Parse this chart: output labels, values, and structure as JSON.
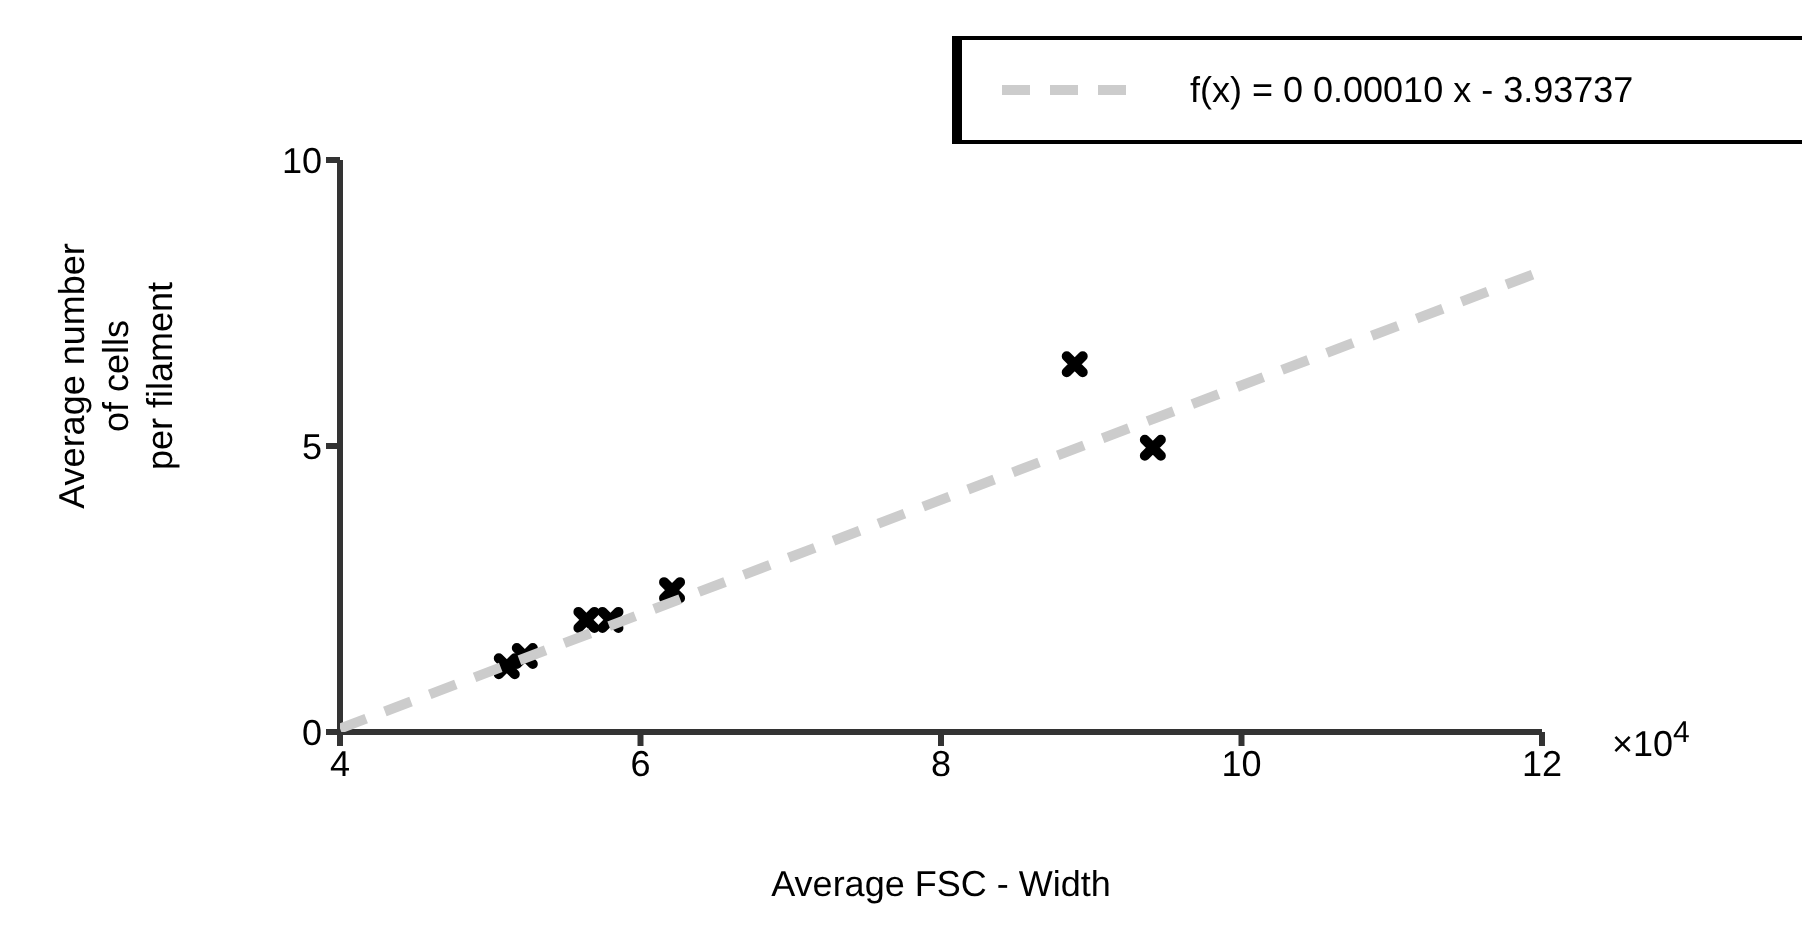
{
  "chart_data": {
    "type": "scatter",
    "xlabel": "Average FSC - Width",
    "ylabel": "Average number\nof cells\nper filament",
    "series": [
      {
        "color": "#000000",
        "marker": "cross",
        "x": [
          5.11,
          5.23,
          5.64,
          5.8,
          6.21,
          8.89,
          9.41
        ],
        "values": [
          1.15,
          1.33,
          1.96,
          1.96,
          2.48,
          6.43,
          4.97
        ]
      },
      {
        "type": "line",
        "name": "f(x) = 0 0.00010 x - 3.93737",
        "color": "#cccccc",
        "line_style": "dashed",
        "marker": "none",
        "x": [
          4,
          12
        ],
        "values": [
          0.06,
          8.06
        ]
      }
    ],
    "xlim": [
      4,
      12
    ],
    "xticks": [
      4,
      6,
      8,
      10,
      12
    ],
    "ylim": [
      0,
      10
    ],
    "yticks": [
      0,
      5,
      10
    ],
    "annotations": [
      "×10$^{4}$"
    ],
    "legend": "top right"
  }
}
